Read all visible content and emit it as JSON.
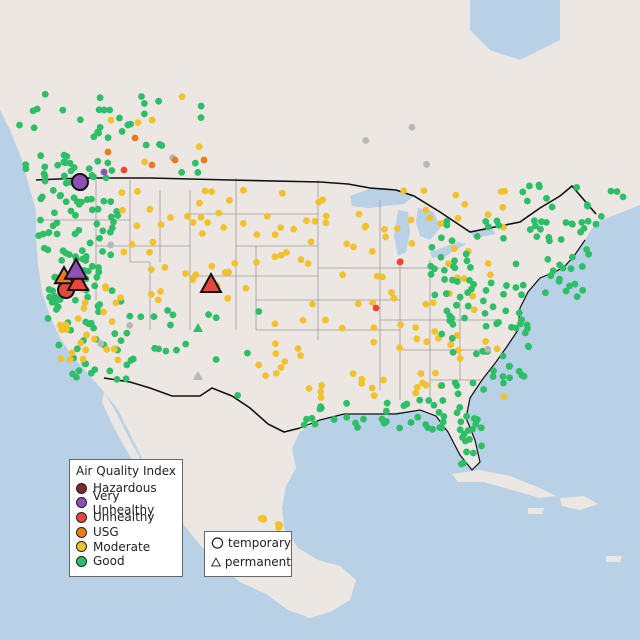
{
  "legend": {
    "title": "Air Quality Index",
    "categories": [
      {
        "label": "Hazardous",
        "color": "#7e2a2a"
      },
      {
        "label": "Very Unhealthy",
        "color": "#8f4fb3"
      },
      {
        "label": "Unhealthy",
        "color": "#e8463a"
      },
      {
        "label": "USG",
        "color": "#ea7b1c"
      },
      {
        "label": "Moderate",
        "color": "#f2c12e"
      },
      {
        "label": "Good",
        "color": "#2dbe67"
      }
    ]
  },
  "monitor_types": [
    {
      "label": "temporary",
      "shape": "circle"
    },
    {
      "label": "permanent",
      "shape": "triangle"
    }
  ],
  "colors": {
    "water": "#b8d1e6",
    "land": "#ece7e2",
    "border": "#111111",
    "state_line": "#9a9a9a",
    "no_data": "#b8b8b8"
  }
}
